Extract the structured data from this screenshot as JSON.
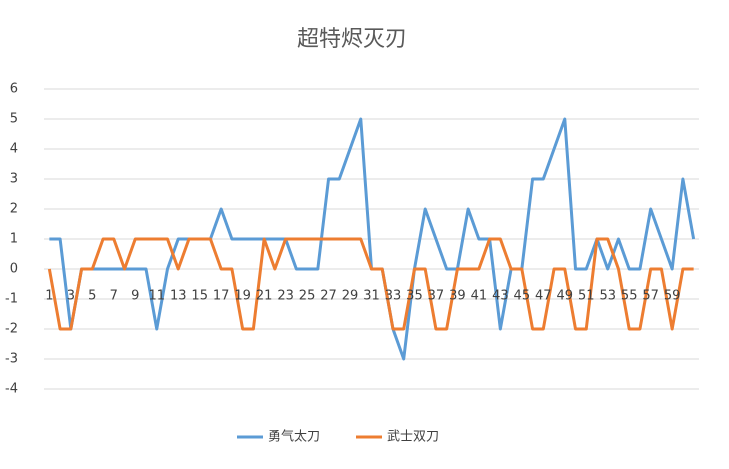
{
  "chart_data": {
    "type": "line",
    "title": "超特烬灭刃",
    "categories": [
      1,
      null,
      3,
      null,
      5,
      null,
      7,
      null,
      9,
      null,
      11,
      null,
      13,
      null,
      15,
      null,
      17,
      null,
      19,
      null,
      21,
      null,
      23,
      null,
      25,
      null,
      27,
      null,
      29,
      null,
      31,
      null,
      33,
      null,
      35,
      null,
      37,
      null,
      39,
      null,
      41,
      null,
      43,
      null,
      45,
      null,
      47,
      null,
      49,
      null,
      51,
      null,
      53,
      null,
      55,
      null,
      57,
      null,
      59,
      null,
      null
    ],
    "series": [
      {
        "name": "勇气太刀",
        "color": "#5b9bd5",
        "values": [
          1,
          1,
          -2,
          0,
          0,
          0,
          0,
          0,
          0,
          0,
          -2,
          0,
          1,
          1,
          1,
          1,
          2,
          1,
          1,
          1,
          1,
          1,
          1,
          0,
          0,
          0,
          3,
          3,
          4,
          5,
          0,
          0,
          -2,
          -3,
          0,
          2,
          1,
          0,
          0,
          2,
          1,
          1,
          -2,
          0,
          0,
          3,
          3,
          4,
          5,
          0,
          0,
          1,
          0,
          1,
          0,
          0,
          2,
          1,
          0,
          3,
          1
        ]
      },
      {
        "name": "武士双刀",
        "color": "#ed7d31",
        "values": [
          0,
          -2,
          -2,
          0,
          0,
          1,
          1,
          0,
          1,
          1,
          1,
          1,
          0,
          1,
          1,
          1,
          0,
          0,
          -2,
          -2,
          1,
          0,
          1,
          1,
          1,
          1,
          1,
          1,
          1,
          1,
          0,
          0,
          -2,
          -2,
          0,
          0,
          -2,
          -2,
          0,
          0,
          0,
          1,
          1,
          0,
          0,
          -2,
          -2,
          0,
          0,
          -2,
          -2,
          1,
          1,
          0,
          -2,
          -2,
          0,
          0,
          -2,
          0,
          0
        ]
      }
    ],
    "ylim": [
      -4,
      6
    ],
    "yticks": [
      -4,
      -3,
      -2,
      -1,
      0,
      1,
      2,
      3,
      4,
      5,
      6
    ],
    "grid": true,
    "legend": "bottom"
  }
}
